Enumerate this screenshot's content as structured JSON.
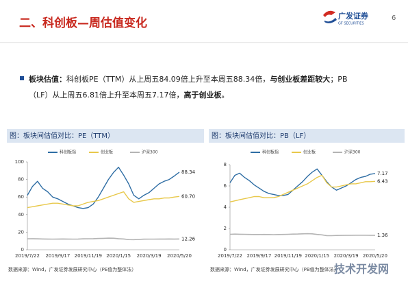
{
  "header": {
    "title": "二、科创板—周估值变化",
    "logo": "广发证券",
    "logo_en": "GF SECURITIES",
    "page": "6"
  },
  "bullet": {
    "lines": [
      [
        {
          "text": "板块估值：",
          "bold": true
        },
        {
          "text": "科创板PE（TTM）从上周五84.09倍上升至本周五88.34倍，",
          "bold": false
        },
        {
          "text": "与创业板差距较大",
          "bold": true
        },
        {
          "text": "；PB",
          "bold": false
        }
      ],
      [
        {
          "text": "（LF）从上周五6.81倍上升至本周五7.17倍，",
          "bold": false
        },
        {
          "text": "高于创业板",
          "bold": true
        },
        {
          "text": "。",
          "bold": false
        }
      ]
    ]
  },
  "watermark": "技术开发网",
  "chart_data": [
    {
      "type": "line",
      "title": "图：板块间估值对比：PE（TTM）",
      "source": "数据来源：Wind，广发证券发展研究中心（PE值为整体法）",
      "categories": [
        "2019/7/22",
        null,
        null,
        null,
        null,
        null,
        "2019/9/17",
        null,
        null,
        null,
        null,
        null,
        "2019/11/19",
        null,
        null,
        null,
        null,
        null,
        "2020/1/15",
        null,
        null,
        null,
        null,
        null,
        "2020/3/19",
        null,
        null,
        null,
        null,
        null,
        "2020/5/20"
      ],
      "ylim": [
        0,
        100
      ],
      "yticks": [
        0,
        20,
        40,
        60,
        80,
        100
      ],
      "series": [
        {
          "name": "科创板指",
          "color": "#2e6da4",
          "values": [
            62,
            72,
            78,
            70,
            66,
            60,
            58,
            55,
            52,
            50,
            48,
            47,
            48,
            52,
            60,
            70,
            80,
            88,
            94,
            85,
            75,
            62,
            58,
            62,
            65,
            70,
            75,
            78,
            80,
            84,
            88.34
          ],
          "value_labels": [
            null,
            null,
            null,
            null,
            null,
            null,
            null,
            null,
            null,
            null,
            null,
            null,
            null,
            null,
            null,
            null,
            null,
            null,
            null,
            null,
            null,
            null,
            null,
            null,
            null,
            null,
            null,
            null,
            null,
            null,
            "88.34"
          ]
        },
        {
          "name": "创业板",
          "color": "#e8c84a",
          "values": [
            48,
            49,
            50,
            51,
            52,
            53,
            53,
            52,
            51,
            50,
            50,
            52,
            54,
            55,
            56,
            58,
            60,
            62,
            64,
            66,
            58,
            54,
            55,
            56,
            57,
            58,
            58,
            59,
            59,
            60,
            60.7
          ],
          "value_labels": [
            null,
            null,
            null,
            null,
            null,
            null,
            null,
            null,
            null,
            null,
            null,
            null,
            null,
            null,
            null,
            null,
            null,
            null,
            null,
            null,
            null,
            null,
            null,
            null,
            null,
            null,
            null,
            null,
            null,
            null,
            "60.70"
          ]
        },
        {
          "name": "沪深300",
          "color": "#b4b4b4",
          "values": [
            12.5,
            12.6,
            12.4,
            12.3,
            12.2,
            12.1,
            12.2,
            12.3,
            12.2,
            12.1,
            12.2,
            12.4,
            12.5,
            12.6,
            12.8,
            13,
            13.2,
            13.1,
            12.6,
            12.3,
            11.6,
            11.5,
            11.8,
            12,
            12.1,
            12.1,
            12.2,
            12.2,
            12.3,
            12.2,
            12.26
          ],
          "value_labels": [
            null,
            null,
            null,
            null,
            null,
            null,
            null,
            null,
            null,
            null,
            null,
            null,
            null,
            null,
            null,
            null,
            null,
            null,
            null,
            null,
            null,
            null,
            null,
            null,
            null,
            null,
            null,
            null,
            null,
            null,
            "12.26"
          ]
        }
      ]
    },
    {
      "type": "line",
      "title": "图：板块间估值对比：PB（LF）",
      "source": "数据来源：Wind，广发证券发展研究中心（PB值为整体法）",
      "categories": [
        "2019/7/22",
        null,
        null,
        null,
        null,
        null,
        "2019/9/17",
        null,
        null,
        null,
        null,
        null,
        "2019/11/19",
        null,
        null,
        null,
        null,
        null,
        "2020/1/15",
        null,
        null,
        null,
        null,
        null,
        "2020/3/19",
        null,
        null,
        null,
        null,
        null,
        "2020/5/20"
      ],
      "ylim": [
        0,
        8
      ],
      "yticks": [
        0,
        2,
        4,
        6,
        8
      ],
      "series": [
        {
          "name": "科创板指",
          "color": "#2e6da4",
          "values": [
            6.3,
            7,
            7.2,
            6.8,
            6.5,
            6.1,
            5.8,
            5.5,
            5.3,
            5.2,
            5.1,
            5.1,
            5.2,
            5.6,
            6,
            6.4,
            6.9,
            7.3,
            7.6,
            7,
            6.4,
            5.9,
            5.6,
            5.8,
            6,
            6.3,
            6.6,
            6.8,
            6.9,
            7.1,
            7.17
          ],
          "value_labels": [
            null,
            null,
            null,
            null,
            null,
            null,
            null,
            null,
            null,
            null,
            null,
            null,
            null,
            null,
            null,
            null,
            null,
            null,
            null,
            null,
            null,
            null,
            null,
            null,
            null,
            null,
            null,
            null,
            null,
            null,
            "7.17"
          ]
        },
        {
          "name": "创业板",
          "color": "#e8c84a",
          "values": [
            4.5,
            4.6,
            4.7,
            4.8,
            4.9,
            5,
            5,
            4.9,
            4.9,
            4.9,
            5,
            5.2,
            5.4,
            5.6,
            5.8,
            6,
            6.2,
            6.5,
            6.8,
            7,
            6.3,
            5.9,
            5.9,
            6,
            6.1,
            6.2,
            6.2,
            6.3,
            6.4,
            6.4,
            6.43
          ],
          "value_labels": [
            null,
            null,
            null,
            null,
            null,
            null,
            null,
            null,
            null,
            null,
            null,
            null,
            null,
            null,
            null,
            null,
            null,
            null,
            null,
            null,
            null,
            null,
            null,
            null,
            null,
            null,
            null,
            null,
            null,
            null,
            "6.43"
          ]
        },
        {
          "name": "沪深300",
          "color": "#b4b4b4",
          "values": [
            1.45,
            1.47,
            1.46,
            1.45,
            1.44,
            1.43,
            1.43,
            1.44,
            1.43,
            1.42,
            1.43,
            1.44,
            1.45,
            1.47,
            1.48,
            1.5,
            1.51,
            1.5,
            1.44,
            1.4,
            1.33,
            1.32,
            1.34,
            1.35,
            1.36,
            1.36,
            1.37,
            1.37,
            1.37,
            1.36,
            1.36
          ],
          "value_labels": [
            null,
            null,
            null,
            null,
            null,
            null,
            null,
            null,
            null,
            null,
            null,
            null,
            null,
            null,
            null,
            null,
            null,
            null,
            null,
            null,
            null,
            null,
            null,
            null,
            null,
            null,
            null,
            null,
            null,
            null,
            "1.36"
          ]
        }
      ]
    }
  ]
}
